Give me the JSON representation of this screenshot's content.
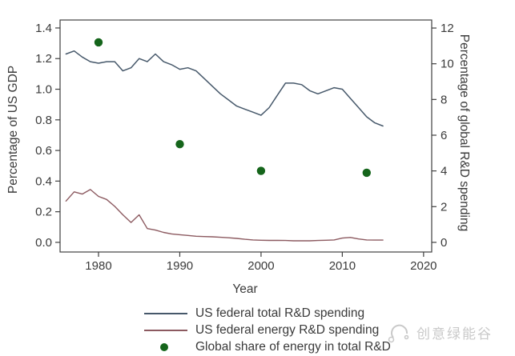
{
  "watermark": {
    "text": "创意绿能谷",
    "color": "#c9c9c9",
    "icon": "swirl-logo-icon"
  },
  "chart_data": {
    "type": "line",
    "title": "",
    "xlabel": "Year",
    "ylabel_left": "Percentage of US GDP",
    "ylabel_right": "Percentage of global R&D spending",
    "grid": false,
    "legend_position": "bottom",
    "frame_color": "#3f3f3f",
    "text_color": "#3a3a3a",
    "xlim": [
      1975.27,
      2021
    ],
    "ylim_left": [
      -0.063,
      1.452
    ],
    "ylim_right": [
      -0.54,
      12.45
    ],
    "xticks": [
      {
        "v": 1980,
        "t": "1980"
      },
      {
        "v": 1990,
        "t": "1990"
      },
      {
        "v": 2000,
        "t": "2000"
      },
      {
        "v": 2010,
        "t": "2010"
      },
      {
        "v": 2020,
        "t": "2020"
      }
    ],
    "yticks_left": [
      {
        "v": 0.0,
        "t": "0.0"
      },
      {
        "v": 0.2,
        "t": "0.2"
      },
      {
        "v": 0.4,
        "t": "0.4"
      },
      {
        "v": 0.6,
        "t": "0.6"
      },
      {
        "v": 0.8,
        "t": "0.8"
      },
      {
        "v": 1.0,
        "t": "1.0"
      },
      {
        "v": 1.2,
        "t": "1.2"
      },
      {
        "v": 1.4,
        "t": "1.4"
      }
    ],
    "yticks_right": [
      {
        "v": 0,
        "t": "0"
      },
      {
        "v": 2,
        "t": "2"
      },
      {
        "v": 4,
        "t": "4"
      },
      {
        "v": 6,
        "t": "6"
      },
      {
        "v": 8,
        "t": "8"
      },
      {
        "v": 10,
        "t": "10"
      },
      {
        "v": 12,
        "t": "12"
      }
    ],
    "series": [
      {
        "name": "US federal total R&D spending",
        "type": "line",
        "axis": "left",
        "color": "#46586a",
        "stroke_width": 1.5,
        "points": [
          [
            1976,
            1.23
          ],
          [
            1977,
            1.25
          ],
          [
            1978,
            1.21
          ],
          [
            1979,
            1.18
          ],
          [
            1980,
            1.17
          ],
          [
            1981,
            1.18
          ],
          [
            1982,
            1.18
          ],
          [
            1983,
            1.12
          ],
          [
            1984,
            1.14
          ],
          [
            1985,
            1.2
          ],
          [
            1986,
            1.18
          ],
          [
            1987,
            1.23
          ],
          [
            1988,
            1.18
          ],
          [
            1989,
            1.16
          ],
          [
            1990,
            1.13
          ],
          [
            1991,
            1.14
          ],
          [
            1992,
            1.12
          ],
          [
            1993,
            1.07
          ],
          [
            1994,
            1.02
          ],
          [
            1995,
            0.97
          ],
          [
            1996,
            0.93
          ],
          [
            1997,
            0.89
          ],
          [
            1998,
            0.87
          ],
          [
            1999,
            0.85
          ],
          [
            2000,
            0.83
          ],
          [
            2001,
            0.88
          ],
          [
            2002,
            0.96
          ],
          [
            2003,
            1.04
          ],
          [
            2004,
            1.04
          ],
          [
            2005,
            1.03
          ],
          [
            2006,
            0.99
          ],
          [
            2007,
            0.97
          ],
          [
            2008,
            0.99
          ],
          [
            2009,
            1.01
          ],
          [
            2010,
            1.0
          ],
          [
            2011,
            0.94
          ],
          [
            2012,
            0.88
          ],
          [
            2013,
            0.82
          ],
          [
            2014,
            0.78
          ],
          [
            2015,
            0.76
          ]
        ]
      },
      {
        "name": "US federal energy R&D spending",
        "type": "line",
        "axis": "left",
        "color": "#8c5a60",
        "stroke_width": 1.4,
        "points": [
          [
            1976,
            0.27
          ],
          [
            1977,
            0.33
          ],
          [
            1978,
            0.315
          ],
          [
            1979,
            0.345
          ],
          [
            1980,
            0.3
          ],
          [
            1981,
            0.28
          ],
          [
            1982,
            0.235
          ],
          [
            1983,
            0.18
          ],
          [
            1984,
            0.13
          ],
          [
            1985,
            0.18
          ],
          [
            1986,
            0.09
          ],
          [
            1987,
            0.08
          ],
          [
            1988,
            0.065
          ],
          [
            1989,
            0.055
          ],
          [
            1990,
            0.05
          ],
          [
            1991,
            0.045
          ],
          [
            1992,
            0.04
          ],
          [
            1993,
            0.038
          ],
          [
            1994,
            0.036
          ],
          [
            1995,
            0.033
          ],
          [
            1996,
            0.03
          ],
          [
            1997,
            0.026
          ],
          [
            1998,
            0.02
          ],
          [
            1999,
            0.016
          ],
          [
            2000,
            0.014
          ],
          [
            2001,
            0.013
          ],
          [
            2002,
            0.013
          ],
          [
            2003,
            0.012
          ],
          [
            2004,
            0.01
          ],
          [
            2005,
            0.01
          ],
          [
            2006,
            0.01
          ],
          [
            2007,
            0.012
          ],
          [
            2008,
            0.014
          ],
          [
            2009,
            0.016
          ],
          [
            2010,
            0.028
          ],
          [
            2011,
            0.032
          ],
          [
            2012,
            0.022
          ],
          [
            2013,
            0.016
          ],
          [
            2014,
            0.015
          ],
          [
            2015,
            0.015
          ]
        ]
      },
      {
        "name": "Global share of energy in total R&D",
        "type": "scatter",
        "axis": "right",
        "color": "#15651b",
        "marker_radius": 5.2,
        "points": [
          [
            1980,
            11.2
          ],
          [
            1990,
            5.5
          ],
          [
            2000,
            4.0
          ],
          [
            2013,
            3.9
          ]
        ]
      }
    ]
  }
}
